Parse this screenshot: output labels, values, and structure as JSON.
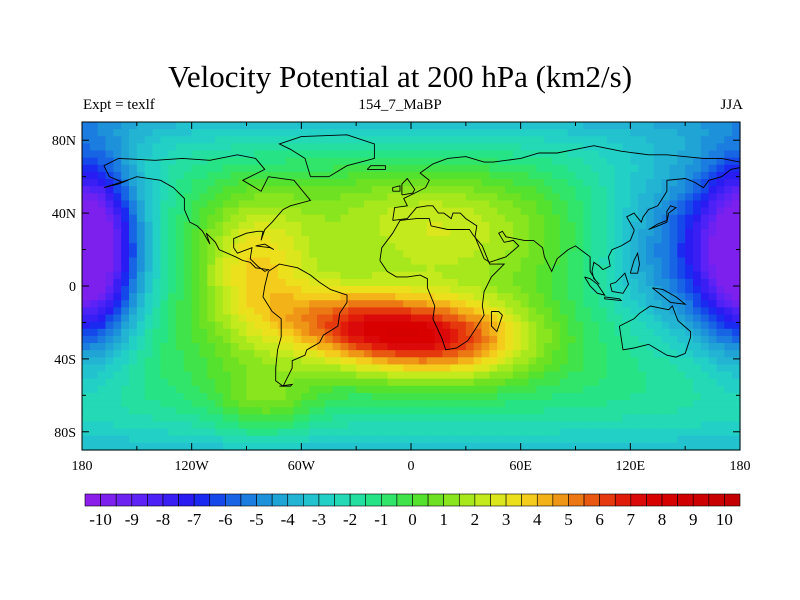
{
  "chart_data": {
    "type": "heatmap",
    "title": "Velocity Potential at 200 hPa (km2/s)",
    "subtitle_left": "Expt = texlf",
    "subtitle_center": "154_7_MaBP",
    "subtitle_right": "JJA",
    "x_range": [
      -180,
      180
    ],
    "y_range": [
      -90,
      90
    ],
    "x_ticks": [
      {
        "value": -180,
        "label": "180"
      },
      {
        "value": -120,
        "label": "120W"
      },
      {
        "value": -60,
        "label": "60W"
      },
      {
        "value": 0,
        "label": "0"
      },
      {
        "value": 60,
        "label": "60E"
      },
      {
        "value": 120,
        "label": "120E"
      },
      {
        "value": 180,
        "label": "180"
      }
    ],
    "y_ticks": [
      {
        "value": 80,
        "label": "80N"
      },
      {
        "value": 40,
        "label": "40N"
      },
      {
        "value": 0,
        "label": "0"
      },
      {
        "value": -40,
        "label": "40S"
      },
      {
        "value": -80,
        "label": "80S"
      }
    ],
    "colorbar": {
      "min": -10.5,
      "max": 10.5,
      "step": 0.5,
      "labels": [
        "-10",
        "-9",
        "-8",
        "-7",
        "-6",
        "-5",
        "-4",
        "-3",
        "-2",
        "-1",
        "0",
        "1",
        "2",
        "3",
        "4",
        "5",
        "6",
        "7",
        "8",
        "9",
        "10"
      ],
      "colors": [
        "#8b1ee8",
        "#7d20ee",
        "#6e22f2",
        "#5d22f5",
        "#4c22f7",
        "#3a1ff5",
        "#291cf2",
        "#1a2af0",
        "#1548ea",
        "#1764e4",
        "#1a7ddf",
        "#1d92da",
        "#20a4d6",
        "#22b4d2",
        "#22c3ce",
        "#23d0c6",
        "#23d9b6",
        "#24dfa0",
        "#26e486",
        "#30e569",
        "#41e34a",
        "#55e22e",
        "#6ee222",
        "#89e51e",
        "#a6e81c",
        "#c2ea1c",
        "#dbe71c",
        "#ece01c",
        "#f4cc1b",
        "#f4b219",
        "#f09616",
        "#ec7813",
        "#e85810",
        "#e5380d",
        "#e01b0a",
        "#db0909",
        "#d90000",
        "#d50000",
        "#d10000",
        "#cc0000",
        "#c80000",
        "#c40000"
      ]
    },
    "field": {
      "description": "velocity potential anomaly in 10^6 km2/s; sum of weighted Gaussian centres in lon/lat",
      "centers": [
        {
          "lon": -10,
          "lat": -28,
          "amp": 5.0,
          "slon": 32,
          "slat": 15
        },
        {
          "lon": 30,
          "lat": -30,
          "amp": 4.0,
          "slon": 30,
          "slat": 16
        },
        {
          "lon": -40,
          "lat": -18,
          "amp": 3.2,
          "slon": 30,
          "slat": 14
        },
        {
          "lon": -85,
          "lat": 10,
          "amp": 3.5,
          "slon": 22,
          "slat": 28
        },
        {
          "lon": 20,
          "lat": 25,
          "amp": 2.0,
          "slon": 45,
          "slat": 20
        },
        {
          "lon": 0,
          "lat": 50,
          "amp": 1.5,
          "slon": 50,
          "slat": 18
        },
        {
          "lon": 160,
          "lat": 20,
          "amp": -6.0,
          "slon": 40,
          "slat": 40
        },
        {
          "lon": -175,
          "lat": 20,
          "amp": -7.0,
          "slon": 18,
          "slat": 40
        },
        {
          "lon": -80,
          "lat": -65,
          "amp": 2.5,
          "slon": 20,
          "slat": 15
        }
      ],
      "polar_value": -3.5,
      "value_range": [
        -10,
        10
      ]
    },
    "coastline_outline": [
      [
        [
          -168,
          66
        ],
        [
          -160,
          70
        ],
        [
          -140,
          69
        ],
        [
          -125,
          70
        ],
        [
          -110,
          69
        ],
        [
          -95,
          72
        ],
        [
          -85,
          70
        ],
        [
          -80,
          64
        ],
        [
          -92,
          58
        ],
        [
          -82,
          52
        ],
        [
          -78,
          60
        ],
        [
          -64,
          58
        ],
        [
          -60,
          53
        ],
        [
          -55,
          47
        ],
        [
          -66,
          44
        ],
        [
          -70,
          42
        ],
        [
          -76,
          35
        ],
        [
          -80,
          31
        ],
        [
          -82,
          25
        ],
        [
          -81,
          30
        ],
        [
          -84,
          30
        ],
        [
          -90,
          29
        ],
        [
          -97,
          26
        ],
        [
          -97,
          21
        ],
        [
          -95,
          18
        ],
        [
          -87,
          21
        ],
        [
          -88,
          15
        ],
        [
          -84,
          11
        ],
        [
          -80,
          8
        ],
        [
          -78,
          9
        ],
        [
          -85,
          10
        ],
        [
          -88,
          13
        ],
        [
          -92,
          14
        ],
        [
          -96,
          16
        ],
        [
          -105,
          20
        ],
        [
          -107,
          24
        ],
        [
          -112,
          29
        ],
        [
          -110,
          23
        ],
        [
          -114,
          30
        ],
        [
          -117,
          33
        ],
        [
          -121,
          35
        ],
        [
          -124,
          42
        ],
        [
          -124,
          48
        ],
        [
          -130,
          54
        ],
        [
          -137,
          58
        ],
        [
          -150,
          60
        ],
        [
          -158,
          57
        ],
        [
          -165,
          60
        ],
        [
          -168,
          66
        ]
      ],
      [
        [
          -55,
          60
        ],
        [
          -45,
          60
        ],
        [
          -35,
          66
        ],
        [
          -20,
          70
        ],
        [
          -20,
          78
        ],
        [
          -35,
          83
        ],
        [
          -60,
          82
        ],
        [
          -72,
          78
        ],
        [
          -66,
          75
        ],
        [
          -58,
          70
        ],
        [
          -55,
          60
        ]
      ],
      [
        [
          -78,
          8
        ],
        [
          -72,
          12
        ],
        [
          -62,
          10
        ],
        [
          -55,
          6
        ],
        [
          -50,
          2
        ],
        [
          -44,
          -2
        ],
        [
          -35,
          -5
        ],
        [
          -35,
          -9
        ],
        [
          -39,
          -15
        ],
        [
          -40,
          -22
        ],
        [
          -48,
          -27
        ],
        [
          -50,
          -31
        ],
        [
          -57,
          -35
        ],
        [
          -58,
          -38
        ],
        [
          -65,
          -41
        ],
        [
          -65,
          -45
        ],
        [
          -68,
          -51
        ],
        [
          -70,
          -55
        ],
        [
          -74,
          -52
        ],
        [
          -74,
          -45
        ],
        [
          -73,
          -35
        ],
        [
          -71,
          -28
        ],
        [
          -71,
          -18
        ],
        [
          -76,
          -14
        ],
        [
          -81,
          -6
        ],
        [
          -80,
          0
        ],
        [
          -78,
          8
        ]
      ],
      [
        [
          -17,
          14
        ],
        [
          -16,
          21
        ],
        [
          -10,
          29
        ],
        [
          -6,
          36
        ],
        [
          3,
          37
        ],
        [
          10,
          37
        ],
        [
          11,
          33
        ],
        [
          20,
          31
        ],
        [
          32,
          31
        ],
        [
          34,
          28
        ],
        [
          39,
          22
        ],
        [
          43,
          12
        ],
        [
          51,
          12
        ],
        [
          44,
          5
        ],
        [
          40,
          -3
        ],
        [
          39,
          -11
        ],
        [
          40,
          -16
        ],
        [
          35,
          -24
        ],
        [
          31,
          -30
        ],
        [
          25,
          -34
        ],
        [
          19,
          -35
        ],
        [
          17,
          -29
        ],
        [
          12,
          -18
        ],
        [
          13,
          -11
        ],
        [
          9,
          -1
        ],
        [
          9,
          4
        ],
        [
          5,
          6
        ],
        [
          -2,
          5
        ],
        [
          -8,
          5
        ],
        [
          -13,
          8
        ],
        [
          -17,
          14
        ]
      ],
      [
        [
          -10,
          36
        ],
        [
          -9,
          43
        ],
        [
          -2,
          44
        ],
        [
          -4,
          48
        ],
        [
          2,
          51
        ],
        [
          8,
          54
        ],
        [
          10,
          58
        ],
        [
          5,
          62
        ],
        [
          12,
          67
        ],
        [
          20,
          70
        ],
        [
          30,
          71
        ],
        [
          40,
          68
        ],
        [
          45,
          68
        ],
        [
          60,
          70
        ],
        [
          70,
          73
        ],
        [
          80,
          73
        ],
        [
          100,
          77
        ],
        [
          115,
          74
        ],
        [
          130,
          72
        ],
        [
          140,
          72
        ],
        [
          160,
          70
        ],
        [
          170,
          70
        ],
        [
          180,
          68
        ],
        [
          180,
          65
        ],
        [
          175,
          64
        ],
        [
          170,
          60
        ],
        [
          163,
          58
        ],
        [
          160,
          54
        ],
        [
          155,
          57
        ],
        [
          150,
          59
        ],
        [
          140,
          58
        ],
        [
          140,
          52
        ],
        [
          135,
          44
        ],
        [
          130,
          42
        ],
        [
          127,
          38
        ],
        [
          126,
          35
        ],
        [
          122,
          40
        ],
        [
          118,
          38
        ],
        [
          122,
          31
        ],
        [
          122,
          30
        ],
        [
          120,
          25
        ],
        [
          115,
          22
        ],
        [
          110,
          20
        ],
        [
          108,
          16
        ],
        [
          109,
          11
        ],
        [
          105,
          9
        ],
        [
          103,
          11
        ],
        [
          100,
          13
        ],
        [
          99,
          8
        ],
        [
          100,
          4
        ],
        [
          103,
          1
        ],
        [
          101,
          3
        ],
        [
          98,
          8
        ],
        [
          98,
          16
        ],
        [
          94,
          19
        ],
        [
          90,
          22
        ],
        [
          86,
          20
        ],
        [
          80,
          15
        ],
        [
          77,
          8
        ],
        [
          73,
          16
        ],
        [
          72,
          21
        ],
        [
          67,
          25
        ],
        [
          62,
          25
        ],
        [
          57,
          26
        ],
        [
          52,
          27
        ],
        [
          50,
          30
        ],
        [
          48,
          29
        ],
        [
          51,
          24
        ],
        [
          56,
          25
        ],
        [
          59,
          22
        ],
        [
          52,
          16
        ],
        [
          43,
          13
        ],
        [
          40,
          15
        ],
        [
          35,
          27
        ],
        [
          36,
          33
        ],
        [
          30,
          37
        ],
        [
          27,
          40
        ],
        [
          23,
          40
        ],
        [
          22,
          37
        ],
        [
          18,
          40
        ],
        [
          15,
          40
        ],
        [
          12,
          44
        ],
        [
          9,
          44
        ],
        [
          3,
          43
        ],
        [
          -2,
          37
        ],
        [
          -10,
          36
        ]
      ],
      [
        [
          114,
          -22
        ],
        [
          116,
          -35
        ],
        [
          122,
          -34
        ],
        [
          130,
          -32
        ],
        [
          135,
          -35
        ],
        [
          140,
          -38
        ],
        [
          145,
          -39
        ],
        [
          150,
          -37
        ],
        [
          153,
          -28
        ],
        [
          153,
          -25
        ],
        [
          146,
          -19
        ],
        [
          143,
          -11
        ],
        [
          141,
          -13
        ],
        [
          136,
          -12
        ],
        [
          131,
          -11
        ],
        [
          125,
          -15
        ],
        [
          122,
          -18
        ],
        [
          114,
          -22
        ]
      ],
      [
        [
          -10,
          52
        ],
        [
          -10,
          54
        ],
        [
          -6,
          55
        ],
        [
          -6,
          52
        ],
        [
          -10,
          52
        ]
      ],
      [
        [
          -5,
          50
        ],
        [
          -5,
          56
        ],
        [
          -2,
          59
        ],
        [
          2,
          53
        ],
        [
          1,
          51
        ],
        [
          -5,
          50
        ]
      ],
      [
        [
          -24,
          64
        ],
        [
          -22,
          66
        ],
        [
          -14,
          66
        ],
        [
          -14,
          64
        ],
        [
          -24,
          64
        ]
      ],
      [
        [
          130,
          31
        ],
        [
          135,
          34
        ],
        [
          140,
          36
        ],
        [
          140,
          41
        ],
        [
          142,
          44
        ],
        [
          145,
          43
        ],
        [
          141,
          40
        ],
        [
          140,
          35
        ],
        [
          135,
          33
        ],
        [
          130,
          31
        ]
      ],
      [
        [
          95,
          5
        ],
        [
          98,
          4
        ],
        [
          102,
          1
        ],
        [
          106,
          -5
        ],
        [
          102,
          -4
        ],
        [
          98,
          0
        ],
        [
          95,
          5
        ]
      ],
      [
        [
          106,
          -6
        ],
        [
          114,
          -7
        ],
        [
          115,
          -8
        ],
        [
          106,
          -7
        ],
        [
          106,
          -6
        ]
      ],
      [
        [
          109,
          1
        ],
        [
          110,
          -3
        ],
        [
          116,
          -4
        ],
        [
          119,
          1
        ],
        [
          117,
          7
        ],
        [
          112,
          2
        ],
        [
          109,
          1
        ]
      ],
      [
        [
          132,
          -1
        ],
        [
          138,
          -2
        ],
        [
          145,
          -6
        ],
        [
          150,
          -10
        ],
        [
          142,
          -9
        ],
        [
          137,
          -5
        ],
        [
          132,
          -1
        ]
      ],
      [
        [
          44,
          -14
        ],
        [
          48,
          -14
        ],
        [
          50,
          -16
        ],
        [
          47,
          -25
        ],
        [
          44,
          -22
        ],
        [
          44,
          -14
        ]
      ],
      [
        [
          120,
          7
        ],
        [
          122,
          14
        ],
        [
          124,
          18
        ],
        [
          125,
          12
        ],
        [
          124,
          7
        ],
        [
          120,
          7
        ]
      ],
      [
        [
          -85,
          22
        ],
        [
          -77,
          21
        ],
        [
          -75,
          20
        ],
        [
          -80,
          23
        ],
        [
          -85,
          22
        ]
      ],
      [
        [
          -168,
          54
        ],
        [
          -160,
          56
        ],
        [
          -155,
          58
        ],
        [
          -165,
          55
        ],
        [
          -168,
          54
        ]
      ],
      [
        [
          -72,
          -55
        ],
        [
          -66,
          -55
        ],
        [
          -65,
          -54
        ],
        [
          -72,
          -55
        ]
      ]
    ]
  }
}
